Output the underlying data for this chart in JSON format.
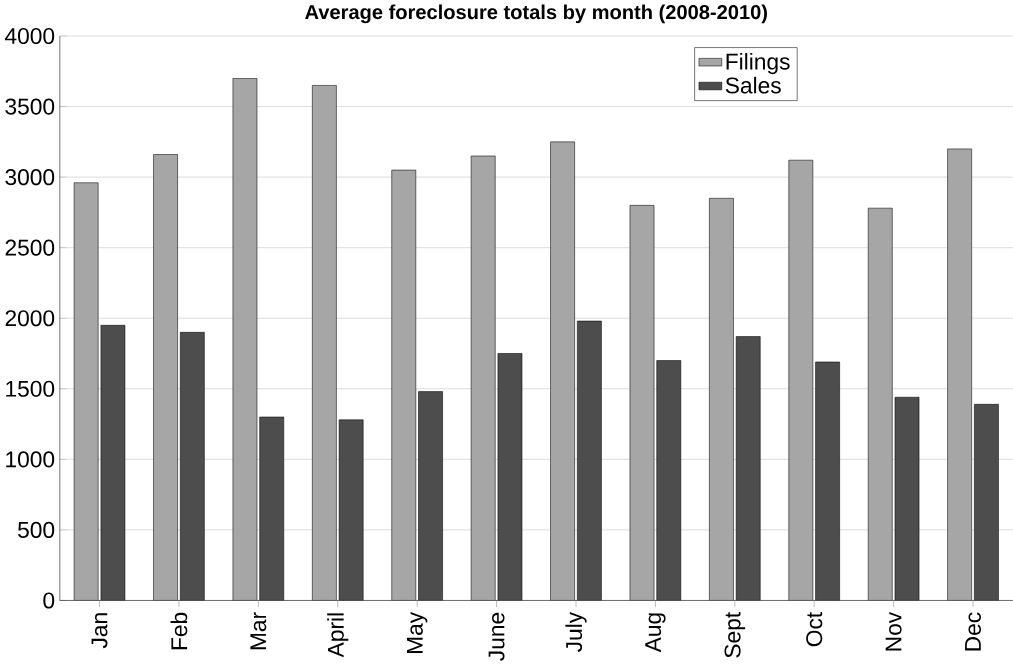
{
  "chart_data": {
    "type": "bar",
    "title": "Average foreclosure totals by month (2008-2010)",
    "categories": [
      "Jan",
      "Feb",
      "Mar",
      "April",
      "May",
      "June",
      "July",
      "Aug",
      "Sept",
      "Oct",
      "Nov",
      "Dec"
    ],
    "series": [
      {
        "name": "Filings",
        "color": "#a6a6a6",
        "values": [
          2960,
          3160,
          3700,
          3650,
          3050,
          3150,
          3250,
          2800,
          2850,
          3120,
          2780,
          3200
        ]
      },
      {
        "name": "Sales",
        "color": "#4d4d4d",
        "values": [
          1950,
          1900,
          1300,
          1280,
          1480,
          1750,
          1980,
          1700,
          1870,
          1690,
          1440,
          1390
        ]
      }
    ],
    "ylim": [
      0,
      4000
    ],
    "yticks": [
      0,
      500,
      1000,
      1500,
      2000,
      2500,
      3000,
      3500,
      4000
    ],
    "grid": "y",
    "legend": "top right"
  }
}
